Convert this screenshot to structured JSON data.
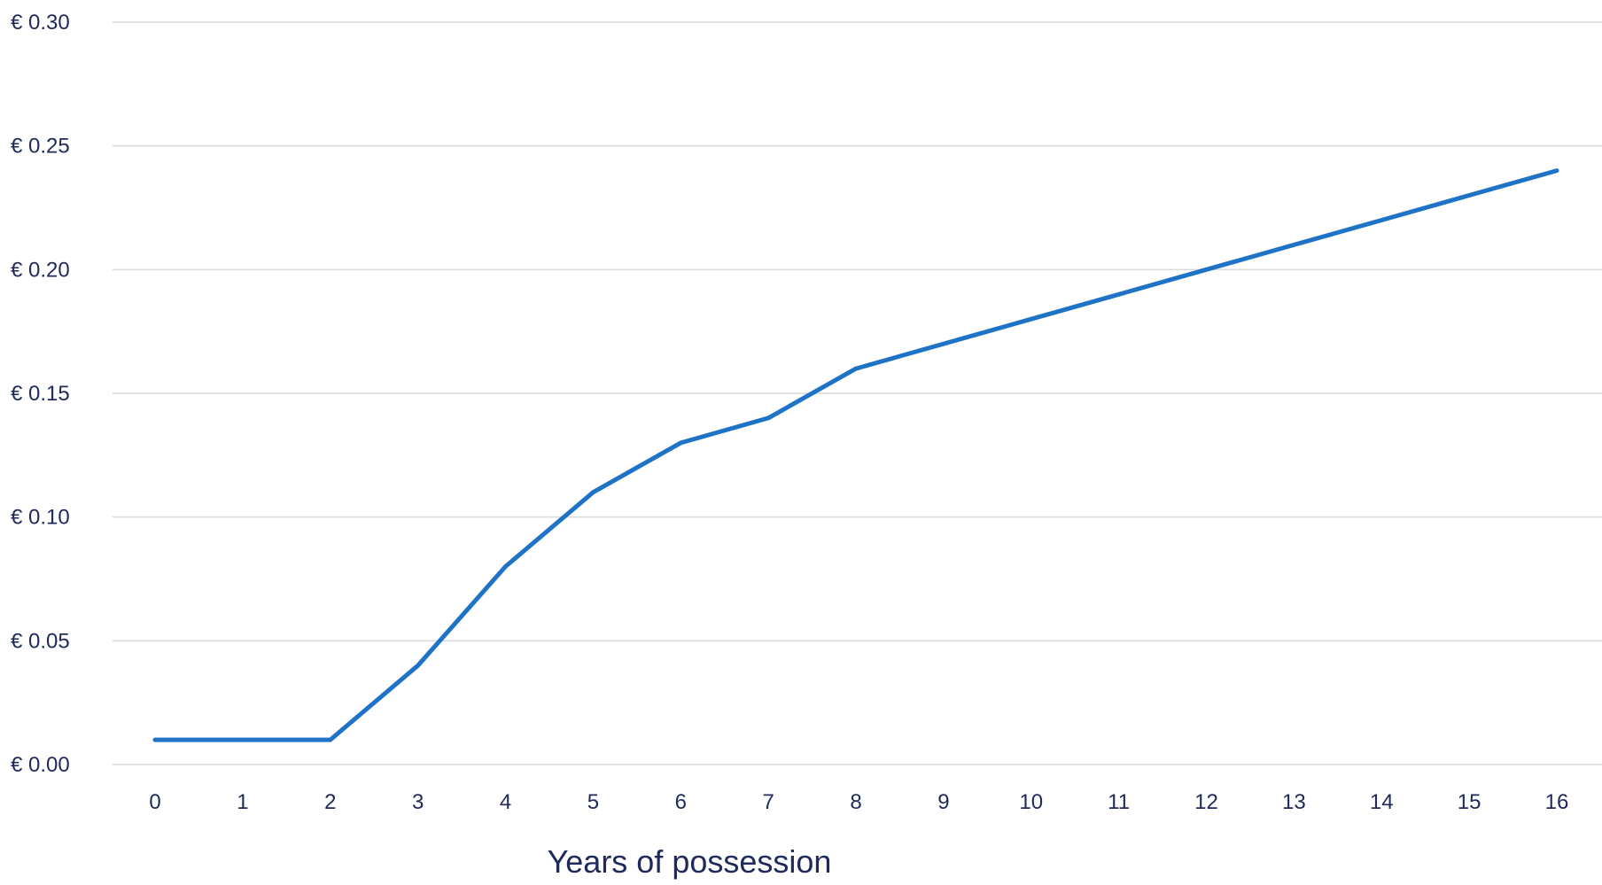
{
  "chart_data": {
    "type": "line",
    "title": "",
    "xlabel": "Years of possession",
    "ylabel": "",
    "x": [
      0,
      1,
      2,
      3,
      4,
      5,
      6,
      7,
      8,
      9,
      10,
      11,
      12,
      13,
      14,
      15,
      16
    ],
    "series": [
      {
        "values": [
          0.01,
          0.01,
          0.01,
          0.04,
          0.08,
          0.11,
          0.13,
          0.14,
          0.16,
          0.17,
          0.18,
          0.19,
          0.2,
          0.21,
          0.22,
          0.23,
          0.24
        ],
        "color": "#1f73c6"
      }
    ],
    "ylim": [
      0,
      0.3
    ],
    "yticks": [
      0.0,
      0.05,
      0.1,
      0.15,
      0.2,
      0.25,
      0.3
    ],
    "ytick_labels": [
      "€ 0.00",
      "€ 0.05",
      "€ 0.10",
      "€ 0.15",
      "€ 0.20",
      "€ 0.25",
      "€ 0.30"
    ],
    "xtick_labels": [
      "0",
      "1",
      "2",
      "3",
      "4",
      "5",
      "6",
      "7",
      "8",
      "9",
      "10",
      "11",
      "12",
      "13",
      "14",
      "15",
      "16"
    ],
    "grid": true,
    "legend": "none"
  }
}
